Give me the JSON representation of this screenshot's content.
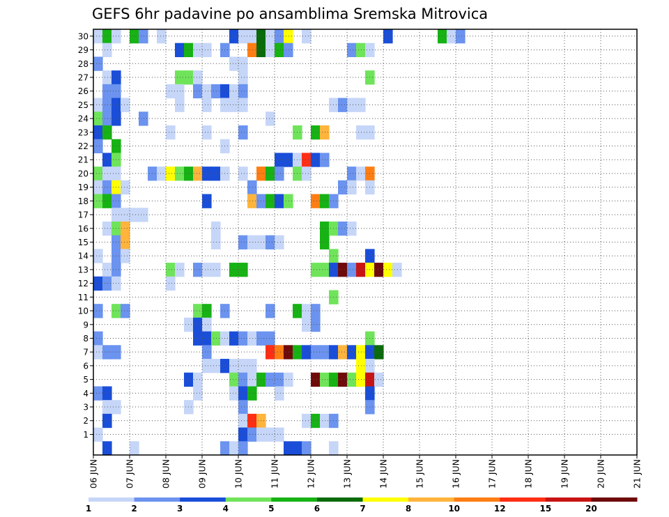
{
  "chart_data": {
    "type": "heatmap",
    "title": "GEFS 6hr padavine po ansamblima Sremska Mitrovica",
    "xlabel": "",
    "ylabel": "",
    "x_ticks": [
      "06 JUN",
      "07 JUN",
      "08 JUN",
      "09 JUN",
      "10 JUN",
      "11 JUN",
      "12 JUN",
      "13 JUN",
      "14 JUN",
      "15 JUN",
      "16 JUN",
      "17 JUN",
      "18 JUN",
      "19 JUN",
      "20 JUN",
      "21 JUN"
    ],
    "y_ticks": [
      "1",
      "2",
      "3",
      "4",
      "5",
      "6",
      "7",
      "8",
      "9",
      "10",
      "11",
      "12",
      "13",
      "14",
      "15",
      "16",
      "17",
      "18",
      "19",
      "20",
      "21",
      "22",
      "23",
      "24",
      "25",
      "26",
      "27",
      "28",
      "29",
      "30"
    ],
    "x_range_days": [
      0,
      15
    ],
    "step_hours": 6,
    "grid": true,
    "levels": [
      "1",
      "2",
      "3",
      "4",
      "5",
      "6",
      "7",
      "8",
      "10",
      "12",
      "15",
      "20"
    ],
    "colors": [
      "#c6d6f8",
      "#6b93ef",
      "#1a4ed8",
      "#6fe45a",
      "#17b214",
      "#0a6b0a",
      "#ffff00",
      "#ffb43c",
      "#ff7e14",
      "#ff2e14",
      "#c81414",
      "#6e0a0a"
    ],
    "cells": [
      [
        30,
        0,
        0
      ],
      [
        30,
        1,
        4
      ],
      [
        30,
        2,
        0
      ],
      [
        30,
        4,
        4
      ],
      [
        30,
        5,
        1
      ],
      [
        30,
        7,
        0
      ],
      [
        30,
        15,
        2
      ],
      [
        30,
        16,
        0
      ],
      [
        30,
        17,
        0
      ],
      [
        30,
        18,
        5
      ],
      [
        30,
        19,
        0
      ],
      [
        30,
        20,
        1
      ],
      [
        30,
        21,
        6
      ],
      [
        30,
        23,
        0
      ],
      [
        30,
        32,
        2
      ],
      [
        30,
        38,
        4
      ],
      [
        30,
        39,
        0
      ],
      [
        30,
        40,
        1
      ],
      [
        29,
        1,
        0
      ],
      [
        29,
        9,
        2
      ],
      [
        29,
        10,
        4
      ],
      [
        29,
        11,
        0
      ],
      [
        29,
        12,
        0
      ],
      [
        29,
        14,
        1
      ],
      [
        29,
        17,
        8
      ],
      [
        29,
        18,
        5
      ],
      [
        29,
        19,
        0
      ],
      [
        29,
        20,
        4
      ],
      [
        29,
        21,
        1
      ],
      [
        29,
        28,
        1
      ],
      [
        29,
        29,
        3
      ],
      [
        29,
        30,
        0
      ],
      [
        28,
        0,
        1
      ],
      [
        28,
        15,
        0
      ],
      [
        28,
        16,
        0
      ],
      [
        27,
        1,
        0
      ],
      [
        27,
        2,
        2
      ],
      [
        27,
        9,
        3
      ],
      [
        27,
        10,
        3
      ],
      [
        27,
        11,
        0
      ],
      [
        27,
        16,
        0
      ],
      [
        27,
        30,
        3
      ],
      [
        26,
        1,
        1
      ],
      [
        26,
        2,
        1
      ],
      [
        26,
        8,
        0
      ],
      [
        26,
        9,
        0
      ],
      [
        26,
        11,
        1
      ],
      [
        26,
        12,
        0
      ],
      [
        26,
        13,
        1
      ],
      [
        26,
        14,
        2
      ],
      [
        26,
        15,
        0
      ],
      [
        26,
        16,
        1
      ],
      [
        25,
        0,
        0
      ],
      [
        25,
        1,
        1
      ],
      [
        25,
        2,
        2
      ],
      [
        25,
        3,
        0
      ],
      [
        25,
        9,
        0
      ],
      [
        25,
        12,
        0
      ],
      [
        25,
        14,
        0
      ],
      [
        25,
        15,
        0
      ],
      [
        25,
        16,
        0
      ],
      [
        25,
        26,
        0
      ],
      [
        25,
        27,
        1
      ],
      [
        25,
        28,
        0
      ],
      [
        25,
        29,
        0
      ],
      [
        24,
        0,
        3
      ],
      [
        24,
        1,
        1
      ],
      [
        24,
        2,
        2
      ],
      [
        24,
        5,
        1
      ],
      [
        24,
        19,
        0
      ],
      [
        23,
        0,
        2
      ],
      [
        23,
        1,
        4
      ],
      [
        23,
        8,
        0
      ],
      [
        23,
        12,
        0
      ],
      [
        23,
        16,
        1
      ],
      [
        23,
        22,
        3
      ],
      [
        23,
        24,
        4
      ],
      [
        23,
        25,
        7
      ],
      [
        23,
        29,
        0
      ],
      [
        23,
        30,
        0
      ],
      [
        22,
        0,
        1
      ],
      [
        22,
        2,
        4
      ],
      [
        22,
        14,
        0
      ],
      [
        21,
        1,
        2
      ],
      [
        21,
        2,
        3
      ],
      [
        21,
        20,
        2
      ],
      [
        21,
        21,
        2
      ],
      [
        21,
        22,
        0
      ],
      [
        21,
        23,
        9
      ],
      [
        21,
        24,
        2
      ],
      [
        21,
        25,
        1
      ],
      [
        20,
        0,
        3
      ],
      [
        20,
        1,
        0
      ],
      [
        20,
        2,
        0
      ],
      [
        20,
        6,
        1
      ],
      [
        20,
        7,
        0
      ],
      [
        20,
        8,
        6
      ],
      [
        20,
        9,
        3
      ],
      [
        20,
        10,
        4
      ],
      [
        20,
        11,
        7
      ],
      [
        20,
        12,
        2
      ],
      [
        20,
        13,
        2
      ],
      [
        20,
        14,
        0
      ],
      [
        20,
        16,
        0
      ],
      [
        20,
        18,
        8
      ],
      [
        20,
        19,
        4
      ],
      [
        20,
        20,
        1
      ],
      [
        20,
        22,
        3
      ],
      [
        20,
        23,
        0
      ],
      [
        20,
        28,
        1
      ],
      [
        20,
        29,
        0
      ],
      [
        20,
        30,
        8
      ],
      [
        19,
        0,
        0
      ],
      [
        19,
        1,
        1
      ],
      [
        19,
        2,
        6
      ],
      [
        19,
        3,
        0
      ],
      [
        19,
        17,
        1
      ],
      [
        19,
        27,
        1
      ],
      [
        19,
        28,
        0
      ],
      [
        19,
        30,
        0
      ],
      [
        18,
        0,
        3
      ],
      [
        18,
        1,
        4
      ],
      [
        18,
        2,
        1
      ],
      [
        18,
        12,
        2
      ],
      [
        18,
        17,
        7
      ],
      [
        18,
        18,
        1
      ],
      [
        18,
        19,
        4
      ],
      [
        18,
        20,
        2
      ],
      [
        18,
        21,
        3
      ],
      [
        18,
        24,
        8
      ],
      [
        18,
        25,
        4
      ],
      [
        18,
        26,
        1
      ],
      [
        17,
        2,
        0
      ],
      [
        17,
        3,
        0
      ],
      [
        17,
        4,
        0
      ],
      [
        17,
        5,
        0
      ],
      [
        16,
        1,
        0
      ],
      [
        16,
        2,
        3
      ],
      [
        16,
        3,
        7
      ],
      [
        16,
        13,
        0
      ],
      [
        16,
        25,
        4
      ],
      [
        16,
        26,
        3
      ],
      [
        16,
        27,
        1
      ],
      [
        16,
        28,
        0
      ],
      [
        15,
        2,
        1
      ],
      [
        15,
        3,
        7
      ],
      [
        15,
        13,
        0
      ],
      [
        15,
        16,
        1
      ],
      [
        15,
        17,
        0
      ],
      [
        15,
        18,
        0
      ],
      [
        15,
        19,
        1
      ],
      [
        15,
        20,
        0
      ],
      [
        15,
        25,
        4
      ],
      [
        14,
        0,
        0
      ],
      [
        14,
        2,
        1
      ],
      [
        14,
        3,
        0
      ],
      [
        14,
        26,
        3
      ],
      [
        14,
        30,
        2
      ],
      [
        13,
        1,
        0
      ],
      [
        13,
        2,
        1
      ],
      [
        13,
        8,
        3
      ],
      [
        13,
        9,
        0
      ],
      [
        13,
        11,
        1
      ],
      [
        13,
        12,
        0
      ],
      [
        13,
        13,
        0
      ],
      [
        13,
        15,
        4
      ],
      [
        13,
        16,
        4
      ],
      [
        13,
        24,
        3
      ],
      [
        13,
        25,
        3
      ],
      [
        13,
        26,
        2
      ],
      [
        13,
        27,
        11
      ],
      [
        13,
        28,
        1
      ],
      [
        13,
        29,
        10
      ],
      [
        13,
        30,
        6
      ],
      [
        13,
        31,
        11
      ],
      [
        13,
        32,
        6
      ],
      [
        13,
        33,
        0
      ],
      [
        12,
        0,
        2
      ],
      [
        12,
        1,
        1
      ],
      [
        12,
        2,
        0
      ],
      [
        12,
        8,
        0
      ],
      [
        11,
        26,
        3
      ],
      [
        10,
        0,
        1
      ],
      [
        10,
        2,
        3
      ],
      [
        10,
        3,
        1
      ],
      [
        10,
        11,
        3
      ],
      [
        10,
        12,
        4
      ],
      [
        10,
        14,
        1
      ],
      [
        10,
        19,
        1
      ],
      [
        10,
        22,
        4
      ],
      [
        10,
        23,
        0
      ],
      [
        10,
        24,
        1
      ],
      [
        9,
        10,
        0
      ],
      [
        9,
        11,
        2
      ],
      [
        9,
        12,
        0
      ],
      [
        9,
        23,
        0
      ],
      [
        9,
        24,
        1
      ],
      [
        8,
        0,
        1
      ],
      [
        8,
        11,
        2
      ],
      [
        8,
        12,
        2
      ],
      [
        8,
        13,
        3
      ],
      [
        8,
        14,
        0
      ],
      [
        8,
        15,
        2
      ],
      [
        8,
        16,
        1
      ],
      [
        8,
        17,
        0
      ],
      [
        8,
        18,
        1
      ],
      [
        8,
        19,
        1
      ],
      [
        8,
        30,
        3
      ],
      [
        7,
        0,
        0
      ],
      [
        7,
        1,
        1
      ],
      [
        7,
        2,
        1
      ],
      [
        7,
        12,
        1
      ],
      [
        7,
        19,
        9
      ],
      [
        7,
        20,
        8
      ],
      [
        7,
        21,
        11
      ],
      [
        7,
        22,
        4
      ],
      [
        7,
        23,
        2
      ],
      [
        7,
        24,
        1
      ],
      [
        7,
        25,
        1
      ],
      [
        7,
        26,
        2
      ],
      [
        7,
        27,
        7
      ],
      [
        7,
        28,
        2
      ],
      [
        7,
        29,
        6
      ],
      [
        7,
        30,
        2
      ],
      [
        7,
        31,
        5
      ],
      [
        6,
        12,
        0
      ],
      [
        6,
        13,
        0
      ],
      [
        6,
        14,
        2
      ],
      [
        6,
        15,
        0
      ],
      [
        6,
        16,
        0
      ],
      [
        6,
        17,
        0
      ],
      [
        6,
        29,
        6
      ],
      [
        6,
        30,
        0
      ],
      [
        5,
        10,
        2
      ],
      [
        5,
        11,
        0
      ],
      [
        5,
        15,
        3
      ],
      [
        5,
        16,
        1
      ],
      [
        5,
        17,
        0
      ],
      [
        5,
        18,
        4
      ],
      [
        5,
        19,
        1
      ],
      [
        5,
        20,
        1
      ],
      [
        5,
        21,
        0
      ],
      [
        5,
        24,
        11
      ],
      [
        5,
        25,
        3
      ],
      [
        5,
        26,
        4
      ],
      [
        5,
        27,
        11
      ],
      [
        5,
        28,
        3
      ],
      [
        5,
        29,
        6
      ],
      [
        5,
        30,
        10
      ],
      [
        5,
        31,
        0
      ],
      [
        4,
        0,
        1
      ],
      [
        4,
        1,
        2
      ],
      [
        4,
        11,
        0
      ],
      [
        4,
        15,
        0
      ],
      [
        4,
        16,
        2
      ],
      [
        4,
        17,
        4
      ],
      [
        4,
        20,
        0
      ],
      [
        4,
        30,
        2
      ],
      [
        3,
        1,
        0
      ],
      [
        3,
        2,
        0
      ],
      [
        3,
        10,
        0
      ],
      [
        3,
        16,
        1
      ],
      [
        3,
        30,
        1
      ],
      [
        2,
        1,
        2
      ],
      [
        2,
        16,
        0
      ],
      [
        2,
        17,
        9
      ],
      [
        2,
        18,
        7
      ],
      [
        2,
        23,
        0
      ],
      [
        2,
        24,
        4
      ],
      [
        2,
        25,
        0
      ],
      [
        2,
        26,
        1
      ],
      [
        1,
        0,
        0
      ],
      [
        1,
        16,
        2
      ],
      [
        1,
        17,
        1
      ],
      [
        1,
        18,
        0
      ],
      [
        1,
        19,
        0
      ],
      [
        1,
        20,
        0
      ],
      [
        0,
        1,
        2
      ],
      [
        0,
        4,
        0
      ],
      [
        0,
        14,
        1
      ],
      [
        0,
        15,
        0
      ],
      [
        0,
        16,
        1
      ],
      [
        0,
        21,
        2
      ],
      [
        0,
        22,
        2
      ],
      [
        0,
        23,
        1
      ],
      [
        0,
        26,
        0
      ]
    ]
  }
}
